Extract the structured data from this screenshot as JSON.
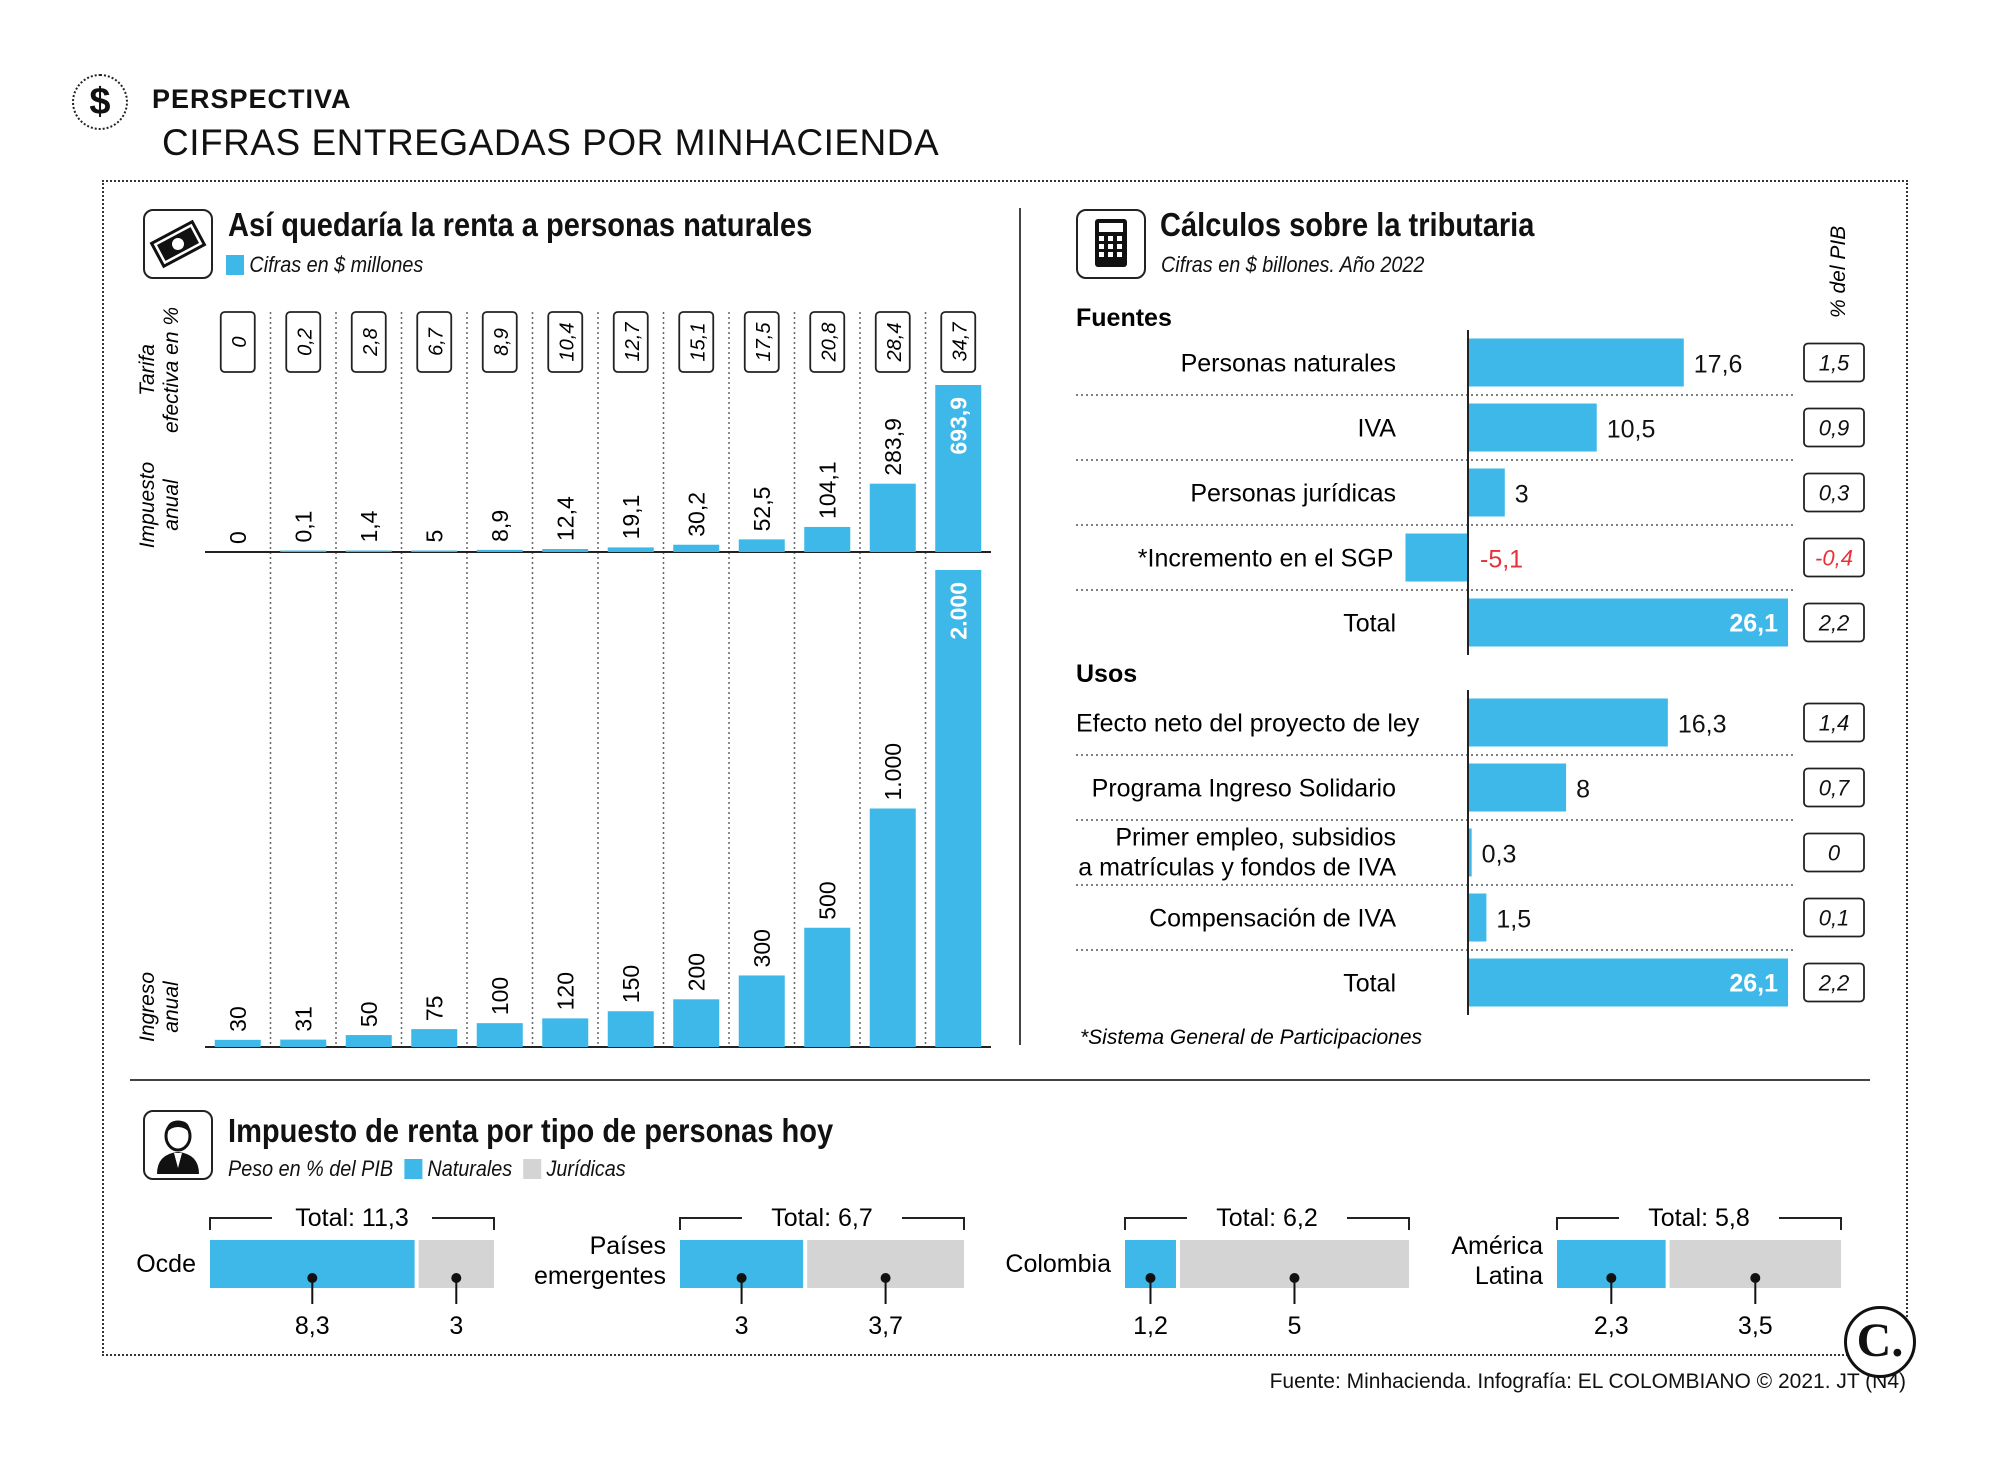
{
  "header": {
    "kicker": "PERSPECTIVA",
    "headline": "CIFRAS ENTREGADAS POR MINHACIENDA",
    "icon": "dollar-icon"
  },
  "colors": {
    "blue": "#3db8e8",
    "gray": "#d4d4d4",
    "red": "#e8303a"
  },
  "left_panel": {
    "title": "Así quedaría la renta a personas naturales",
    "subtitle": "Cifras en $ millones",
    "icon": "money-icon",
    "row_labels": {
      "tarifa": "Tarifa efectiva en %",
      "impuesto": "Impuesto anual",
      "ingreso": "Ingreso anual"
    }
  },
  "right_panel": {
    "title": "Cálculos sobre la tributaria",
    "subtitle": "Cifras en $ billones. Año 2022",
    "icon": "calculator-icon",
    "pib_header": "% del PIB",
    "fuentes_label": "Fuentes",
    "usos_label": "Usos",
    "footnote": "*Sistema General de Participaciones"
  },
  "bottom_panel": {
    "title": "Impuesto de renta por tipo de personas hoy",
    "subtitle": "Peso en % del PIB",
    "legend": [
      "Naturales",
      "Jurídicas"
    ],
    "icon": "person-icon"
  },
  "chart_data": [
    {
      "type": "bar",
      "name": "tarifa-impuesto-ingreso",
      "series": [
        {
          "name": "Tarifa efectiva en %",
          "values": [
            "0",
            "0,2",
            "2,8",
            "6,7",
            "8,9",
            "10,4",
            "12,7",
            "15,1",
            "17,5",
            "20,8",
            "28,4",
            "34,7"
          ]
        },
        {
          "name": "Impuesto anual",
          "values": [
            0,
            0.1,
            1.4,
            5,
            8.9,
            12.4,
            19.1,
            30.2,
            52.5,
            104.1,
            283.9,
            693.9
          ],
          "labels": [
            "0",
            "0,1",
            "1,4",
            "5",
            "8,9",
            "12,4",
            "19,1",
            "30,2",
            "52,5",
            "104,1",
            "283,9",
            "693,9"
          ]
        },
        {
          "name": "Ingreso anual",
          "values": [
            30,
            31,
            50,
            75,
            100,
            120,
            150,
            200,
            300,
            500,
            1000,
            2000
          ],
          "labels": [
            "30",
            "31",
            "50",
            "75",
            "100",
            "120",
            "150",
            "200",
            "300",
            "500",
            "1.000",
            "2.000"
          ]
        }
      ]
    },
    {
      "type": "bar",
      "name": "fuentes",
      "categories": [
        "Personas naturales",
        "IVA",
        "Personas jurídicas",
        "*Incremento en el SGP",
        "Total"
      ],
      "values": [
        17.6,
        10.5,
        3,
        -5.1,
        26.1
      ],
      "labels": [
        "17,6",
        "10,5",
        "3",
        "-5,1",
        "26,1"
      ],
      "pib": [
        "1,5",
        "0,9",
        "0,3",
        "-0,4",
        "2,2"
      ]
    },
    {
      "type": "bar",
      "name": "usos",
      "categories": [
        "Efecto neto del proyecto de ley",
        "Programa Ingreso Solidario",
        "Primer empleo, subsidios|a matrículas y fondos de IVA",
        "Compensación de IVA",
        "Total"
      ],
      "values": [
        16.3,
        8,
        0.3,
        1.5,
        26.1
      ],
      "labels": [
        "16,3",
        "8",
        "0,3",
        "1,5",
        "26,1"
      ],
      "pib": [
        "1,4",
        "0,7",
        "0",
        "0,1",
        "2,2"
      ]
    },
    {
      "type": "bar",
      "name": "renta-por-tipo",
      "groups": [
        {
          "name": "Ocde",
          "total": "Total: 11,3",
          "naturales": 8.3,
          "juridicas": 3,
          "labels": [
            "8,3",
            "3"
          ]
        },
        {
          "name": "Países|emergentes",
          "total": "Total: 6,7",
          "naturales": 3,
          "juridicas": 3.7,
          "labels": [
            "3",
            "3,7"
          ]
        },
        {
          "name": "Colombia",
          "total": "Total: 6,2",
          "naturales": 1.2,
          "juridicas": 5,
          "labels": [
            "1,2",
            "5"
          ]
        },
        {
          "name": "América|Latina",
          "total": "Total: 5,8",
          "naturales": 2.3,
          "juridicas": 3.5,
          "labels": [
            "2,3",
            "3,5"
          ]
        }
      ]
    }
  ],
  "footer": {
    "source": "Fuente: Minhacienda. Infografía: EL COLOMBIANO © 2021. JT (N4)",
    "logo": "C."
  }
}
